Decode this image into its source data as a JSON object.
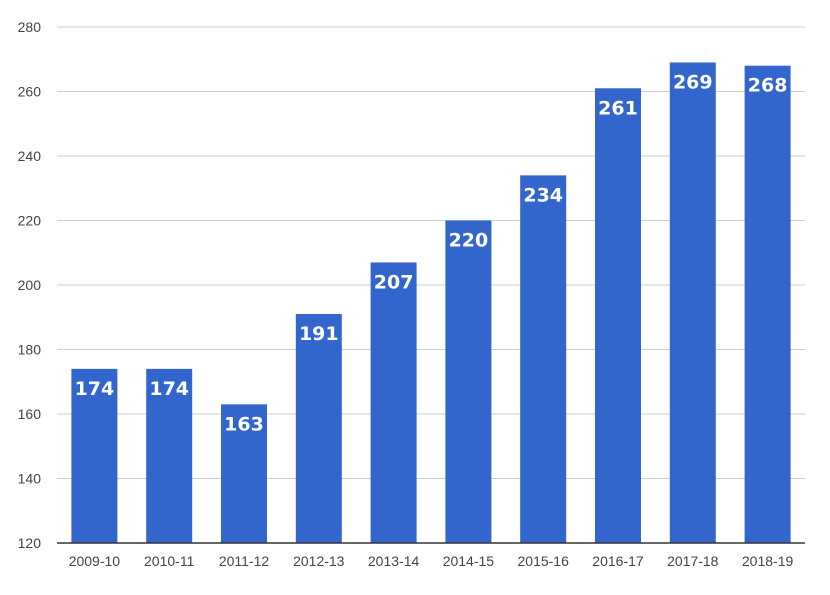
{
  "chart_data": {
    "type": "bar",
    "title": "",
    "xlabel": "",
    "ylabel": "",
    "categories": [
      "2009-10",
      "2010-11",
      "2011-12",
      "2012-13",
      "2013-14",
      "2014-15",
      "2015-16",
      "2016-17",
      "2017-18",
      "2018-19"
    ],
    "values": [
      174,
      174,
      163,
      191,
      207,
      220,
      234,
      261,
      269,
      268
    ],
    "data_labels": [
      "174",
      "174",
      "163",
      "191",
      "207",
      "220",
      "234",
      "261",
      "269",
      "268"
    ],
    "ylim": [
      120,
      280
    ],
    "yticks": [
      120,
      140,
      160,
      180,
      200,
      220,
      240,
      260,
      280
    ],
    "ytick_labels": [
      "120",
      "140",
      "160",
      "180",
      "200",
      "220",
      "240",
      "260",
      "280"
    ],
    "grid": true,
    "legend": "none",
    "bar_color": "#3366cc"
  }
}
